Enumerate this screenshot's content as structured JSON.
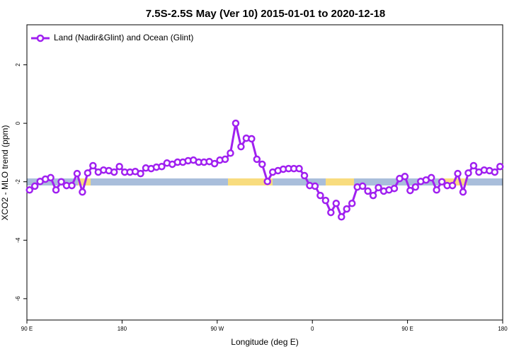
{
  "chart_data": {
    "type": "line",
    "title": "7.5S-2.5S May (Ver 10)   2015-01-01 to 2020-12-18",
    "xlabel": "Longitude (deg E)",
    "ylabel": "XCO2 - MLO trend (ppm)",
    "legend": "top-left",
    "xlim": [
      90,
      540
    ],
    "ylim": [
      -6.73,
      3.37
    ],
    "xticks": [
      {
        "value": 90,
        "label": "90 E"
      },
      180,
      {
        "value": 270,
        "label": "90 W"
      },
      {
        "value": 360,
        "label": "0"
      },
      {
        "value": 450,
        "label": "90 E"
      },
      {
        "value": 540,
        "label": "180"
      }
    ],
    "yticks": [
      2,
      0,
      -2,
      -4,
      -6
    ],
    "x": [
      92.5,
      97.5,
      102.5,
      107.5,
      112.5,
      117.5,
      122.5,
      127.5,
      132.5,
      137.5,
      142.5,
      147.5,
      152.5,
      157.5,
      162.5,
      167.5,
      172.5,
      177.5,
      182.5,
      187.5,
      192.5,
      197.5,
      202.5,
      207.5,
      212.5,
      217.5,
      222.5,
      227.5,
      232.5,
      237.5,
      242.5,
      247.5,
      252.5,
      257.5,
      262.5,
      267.5,
      272.5,
      277.5,
      282.5,
      287.5,
      292.5,
      297.5,
      302.5,
      307.5,
      312.5,
      317.5,
      322.5,
      327.5,
      332.5,
      337.5,
      342.5,
      347.5,
      352.5,
      357.5,
      362.5,
      367.5,
      372.5,
      377.5,
      382.5,
      387.5,
      392.5,
      397.5,
      402.5,
      407.5,
      412.5,
      417.5,
      422.5,
      427.5,
      432.5,
      437.5,
      442.5,
      447.5,
      452.5,
      457.5,
      462.5,
      467.5,
      472.5,
      477.5,
      482.5,
      487.5,
      492.5,
      497.5,
      502.5,
      507.5,
      512.5,
      517.5,
      522.5,
      527.5,
      532.5,
      537.5
    ],
    "series": [
      {
        "name": "Land (Nadir&Glint) and Ocean (Glint)",
        "color": "#a020f0",
        "values": [
          -2.28,
          -2.15,
          -1.99,
          -1.91,
          -1.86,
          -2.28,
          -2.0,
          -2.13,
          -2.13,
          -1.72,
          -2.35,
          -1.7,
          -1.45,
          -1.67,
          -1.6,
          -1.62,
          -1.67,
          -1.48,
          -1.67,
          -1.67,
          -1.65,
          -1.72,
          -1.53,
          -1.55,
          -1.5,
          -1.48,
          -1.36,
          -1.4,
          -1.33,
          -1.33,
          -1.28,
          -1.26,
          -1.33,
          -1.33,
          -1.31,
          -1.38,
          -1.26,
          -1.23,
          -1.02,
          0.0,
          -0.8,
          -0.51,
          -0.53,
          -1.23,
          -1.4,
          -1.99,
          -1.67,
          -1.62,
          -1.57,
          -1.55,
          -1.55,
          -1.55,
          -1.79,
          -2.13,
          -2.15,
          -2.47,
          -2.64,
          -3.05,
          -2.74,
          -3.2,
          -2.93,
          -2.74,
          -2.18,
          -2.15,
          -2.32,
          -2.47,
          -2.2,
          -2.32,
          -2.28,
          -2.23,
          -1.89,
          -1.82,
          -2.3,
          -2.18,
          -1.99,
          -1.94,
          -1.86,
          -2.28,
          -2.0,
          -2.13,
          -2.13,
          -1.72,
          -2.35,
          -1.7,
          -1.45,
          -1.67,
          -1.6,
          -1.62,
          -1.67,
          -1.48
        ]
      }
    ]
  }
}
